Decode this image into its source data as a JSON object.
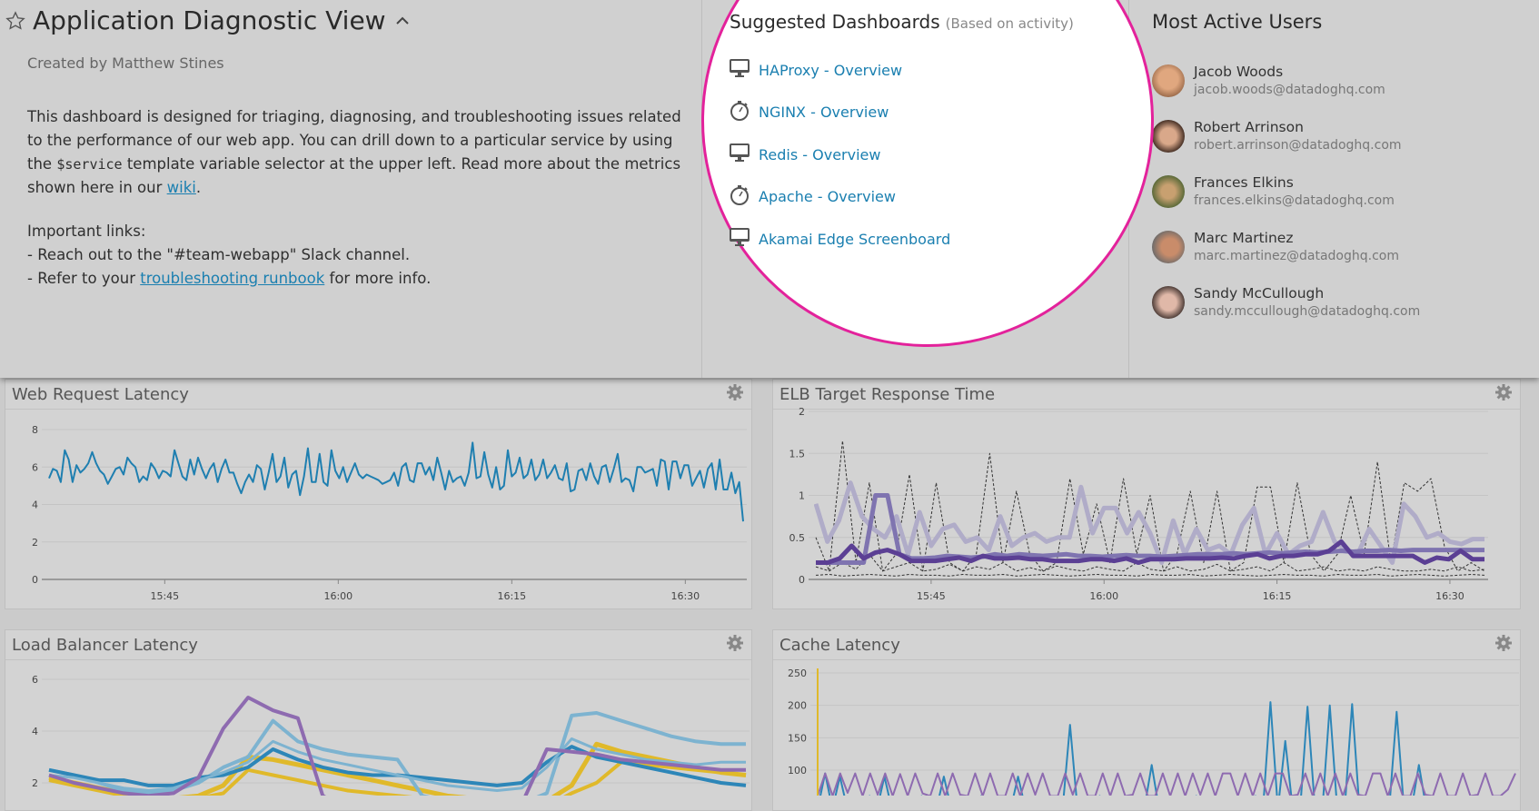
{
  "header": {
    "title": "Application Diagnostic View",
    "creator": "Created by Matthew Stines"
  },
  "description": {
    "p1_before": "This dashboard is designed for triaging, diagnosing, and troubleshooting issues related to the performance of our web app. You can drill down to a particular service by using the ",
    "code": "$service",
    "p1_after": " template variable selector at the upper left. Read more about the metrics shown here in our ",
    "wiki": "wiki",
    "p1_end": ".",
    "links_title": "Important links:",
    "link1": "- Reach out to the \"#team-webapp\" Slack channel.",
    "link2_before": "- Refer to your ",
    "link2_link": "troubleshooting runbook",
    "link2_after": " for more info."
  },
  "suggested": {
    "title": "Suggested Dashboards",
    "subtitle": "(Based on activity)",
    "items": [
      {
        "label": "HAProxy - Overview",
        "icon": "monitor-icon"
      },
      {
        "label": "NGINX - Overview",
        "icon": "stopwatch-icon"
      },
      {
        "label": "Redis - Overview",
        "icon": "monitor-icon"
      },
      {
        "label": "Apache - Overview",
        "icon": "stopwatch-icon"
      },
      {
        "label": "Akamai Edge Screenboard",
        "icon": "monitor-icon"
      }
    ]
  },
  "users": {
    "title": "Most Active Users",
    "items": [
      {
        "name": "Jacob Woods",
        "email": "jacob.woods@datadoghq.com"
      },
      {
        "name": "Robert Arrinson",
        "email": "robert.arrinson@datadoghq.com"
      },
      {
        "name": "Frances Elkins",
        "email": "frances.elkins@datadoghq.com"
      },
      {
        "name": "Marc Martinez",
        "email": "marc.martinez@datadoghq.com"
      },
      {
        "name": "Sandy McCullough",
        "email": "sandy.mccullough@datadoghq.com"
      }
    ]
  },
  "colors": {
    "highlight": "#e3229b",
    "link": "#1a7fb0"
  },
  "chart_data": [
    {
      "title": "Web Request Latency",
      "type": "line",
      "x_range": [
        "15:35",
        "16:35"
      ],
      "xticks": [
        "15:45",
        "16:00",
        "16:15",
        "16:30"
      ],
      "ylim": [
        0,
        8
      ],
      "yticks": [
        0,
        2,
        4,
        6,
        8
      ],
      "grid": true,
      "series": [
        {
          "color": "#1f7fb0",
          "width": 2,
          "values": [
            5.4,
            5.9,
            5.8,
            5.2,
            6.9,
            6.4,
            5.2,
            6.1,
            5.7,
            5.9,
            6.2,
            6.8,
            6.2,
            5.8,
            5.6,
            5.1,
            5.5,
            5.9,
            6.0,
            5.6,
            6.5,
            6.2,
            6.0,
            5.2,
            5.5,
            5.3,
            6.2,
            5.9,
            5.4,
            5.8,
            5.7,
            5.5,
            6.9,
            6.2,
            5.5,
            5.3,
            6.4,
            5.6,
            6.5,
            5.9,
            5.4,
            5.9,
            6.2,
            5.2,
            5.9,
            6.4,
            5.7,
            5.7,
            5.1,
            4.6,
            5.2,
            5.6,
            5.2,
            6.1,
            5.9,
            4.8,
            5.7,
            6.7,
            5.2,
            5.5,
            6.5,
            4.9,
            5.6,
            5.8,
            4.5,
            5.5,
            7.0,
            5.2,
            5.2,
            6.7,
            5.2,
            5.0,
            6.9,
            5.8,
            5.4,
            6.0,
            5.2,
            5.7,
            6.2,
            5.6,
            5.4,
            5.6,
            5.5,
            5.4,
            5.3,
            5.1,
            5.2,
            5.3,
            5.7,
            5.0,
            6.0,
            6.2,
            5.3,
            5.2,
            6.2,
            6.2,
            5.6,
            6.0,
            5.3,
            6.5,
            5.7,
            4.8,
            5.8,
            5.2,
            5.4,
            5.5,
            5.0,
            5.7,
            7.3,
            5.4,
            5.5,
            6.8,
            5.6,
            4.9,
            6.0,
            4.8,
            5.0,
            6.9,
            5.5,
            5.7,
            6.5,
            5.4,
            5.6,
            6.4,
            5.3,
            5.6,
            6.4,
            5.4,
            5.7,
            6.1,
            5.4,
            5.3,
            6.2,
            4.7,
            4.8,
            5.8,
            5.9,
            5.3,
            6.2,
            5.5,
            5.1,
            6.0,
            6.1,
            5.2,
            5.9,
            6.7,
            5.2,
            5.4,
            5.3,
            4.7,
            6.0,
            6.0,
            5.7,
            5.8,
            5.9,
            5.0,
            6.4,
            6.3,
            4.8,
            6.3,
            6.3,
            5.4,
            6.1,
            6.1,
            5.0,
            5.4,
            5.8,
            4.9,
            5.9,
            6.2,
            4.8,
            6.4,
            4.8,
            4.8,
            5.7,
            4.6,
            5.2,
            3.1
          ]
        }
      ]
    },
    {
      "title": "ELB Target Response Time",
      "type": "line",
      "x_range": [
        "15:35",
        "16:33"
      ],
      "xticks": [
        "15:45",
        "16:00",
        "16:15",
        "16:30"
      ],
      "ylim": [
        0,
        2
      ],
      "yticks": [
        0,
        0.5,
        1,
        1.5,
        2
      ],
      "grid": true,
      "series": [
        {
          "color": "#333333",
          "width": 1,
          "dashed": true,
          "values": [
            0.5,
            0.1,
            1.65,
            0.2,
            1.15,
            0.1,
            0.3,
            1.25,
            0.1,
            1.15,
            0.2,
            0.1,
            0.3,
            1.5,
            0.2,
            1.05,
            0.3,
            0.1,
            0.2,
            1.2,
            0.3,
            0.9,
            0.2,
            1.2,
            0.3,
            1.0,
            0.1,
            0.3,
            1.05,
            0.2,
            1.05,
            0.1,
            0.2,
            1.1,
            1.1,
            0.2,
            1.15,
            0.3,
            0.1,
            0.3,
            1.0,
            0.3,
            1.4,
            0.2,
            1.15,
            1.05,
            1.2,
            0.4,
            0.1,
            0.2,
            0.1
          ]
        },
        {
          "color": "#333333",
          "width": 1,
          "dashed": true,
          "values": [
            0.15,
            0.1,
            0.2,
            0.12,
            0.3,
            0.1,
            0.15,
            0.2,
            0.1,
            0.12,
            0.18,
            0.1,
            0.15,
            0.12,
            0.2,
            0.1,
            0.14,
            0.1,
            0.16,
            0.12,
            0.1,
            0.15,
            0.12,
            0.1,
            0.2,
            0.12,
            0.1,
            0.15,
            0.1,
            0.12,
            0.18,
            0.1,
            0.12,
            0.15,
            0.1,
            0.2,
            0.1,
            0.12,
            0.15,
            0.1,
            0.12,
            0.1,
            0.15,
            0.12,
            0.1,
            0.1,
            0.12,
            0.1,
            0.15,
            0.1,
            0.12
          ]
        },
        {
          "color": "#333333",
          "width": 1,
          "dashed": true,
          "values": [
            0.05,
            0.06,
            0.04,
            0.05,
            0.06,
            0.05,
            0.04,
            0.06,
            0.05,
            0.05,
            0.04,
            0.06,
            0.05,
            0.05,
            0.06,
            0.04,
            0.05,
            0.06,
            0.05,
            0.04,
            0.05,
            0.06,
            0.05,
            0.05,
            0.04,
            0.06,
            0.05,
            0.05,
            0.06,
            0.04,
            0.05,
            0.06,
            0.05,
            0.04,
            0.05,
            0.06,
            0.05,
            0.05,
            0.04,
            0.06,
            0.05,
            0.05,
            0.06,
            0.04,
            0.05,
            0.06,
            0.05,
            0.04,
            0.05,
            0.06,
            0.05
          ]
        },
        {
          "color": "#b0acc8",
          "width": 5,
          "values": [
            0.9,
            0.45,
            0.7,
            1.15,
            0.75,
            0.6,
            0.5,
            0.75,
            0.3,
            0.8,
            0.4,
            0.6,
            0.65,
            0.45,
            0.5,
            0.35,
            0.75,
            0.4,
            0.5,
            0.55,
            0.45,
            0.5,
            0.5,
            1.1,
            0.55,
            0.85,
            0.85,
            0.55,
            0.8,
            0.55,
            0.2,
            0.7,
            0.3,
            0.6,
            0.35,
            0.4,
            0.3,
            0.65,
            0.85,
            0.3,
            0.55,
            0.3,
            0.4,
            0.45,
            0.8,
            0.45,
            0.35,
            0.3,
            0.6,
            0.4,
            0.2,
            0.9,
            0.75,
            0.5,
            0.55,
            0.45,
            0.42,
            0.48,
            0.48
          ]
        },
        {
          "color": "#7f74b0",
          "width": 5,
          "values": [
            0.2,
            0.2,
            0.2,
            0.2,
            0.2,
            1.0,
            1.0,
            0.3,
            0.25,
            0.25,
            0.26,
            0.28,
            0.27,
            0.26,
            0.27,
            0.3,
            0.28,
            0.3,
            0.29,
            0.28,
            0.29,
            0.3,
            0.28,
            0.28,
            0.27,
            0.28,
            0.29,
            0.28,
            0.28,
            0.27,
            0.28,
            0.29,
            0.3,
            0.3,
            0.3,
            0.31,
            0.3,
            0.31,
            0.32,
            0.31,
            0.32,
            0.33,
            0.32,
            0.33,
            0.34,
            0.33,
            0.34,
            0.34,
            0.35,
            0.34,
            0.35,
            0.35,
            0.35,
            0.35,
            0.35,
            0.35,
            0.35
          ]
        },
        {
          "color": "#5b3f94",
          "width": 5,
          "values": [
            0.2,
            0.2,
            0.25,
            0.4,
            0.25,
            0.32,
            0.35,
            0.3,
            0.22,
            0.22,
            0.22,
            0.24,
            0.26,
            0.22,
            0.28,
            0.25,
            0.25,
            0.26,
            0.24,
            0.24,
            0.22,
            0.22,
            0.22,
            0.24,
            0.24,
            0.22,
            0.25,
            0.2,
            0.24,
            0.24,
            0.24,
            0.25,
            0.25,
            0.25,
            0.26,
            0.25,
            0.28,
            0.3,
            0.25,
            0.28,
            0.28,
            0.3,
            0.3,
            0.34,
            0.45,
            0.28,
            0.28,
            0.28,
            0.28,
            0.28,
            0.28,
            0.2,
            0.26,
            0.24,
            0.34,
            0.24,
            0.24
          ]
        }
      ]
    },
    {
      "title": "Load Balancer Latency",
      "type": "line",
      "x_range": [
        "15:35",
        "16:35"
      ],
      "ylim": [
        0,
        6
      ],
      "yticks": [
        2,
        4,
        6
      ],
      "grid": true,
      "series": [
        {
          "color": "#e0b92a",
          "width": 5,
          "values": [
            2.2,
            2.0,
            1.8,
            1.6,
            1.5,
            1.4,
            1.5,
            1.9,
            3.0,
            2.9,
            2.7,
            2.5,
            2.3,
            2.1,
            1.9,
            1.7,
            1.5,
            1.4,
            1.3,
            1.2,
            1.3,
            1.9,
            3.5,
            3.2,
            3.0,
            2.8,
            2.6,
            2.4,
            2.3
          ]
        },
        {
          "color": "#e0b92a",
          "width": 4,
          "values": [
            2.1,
            1.9,
            1.7,
            1.5,
            1.4,
            1.3,
            1.4,
            1.6,
            2.5,
            2.3,
            2.1,
            1.9,
            1.7,
            1.6,
            1.5,
            1.4,
            1.3,
            1.2,
            1.1,
            1.0,
            1.1,
            1.6,
            2.0,
            2.8,
            2.7,
            2.6,
            2.5,
            2.4,
            2.3
          ]
        },
        {
          "color": "#7db3d0",
          "width": 4,
          "values": [
            2.5,
            2.3,
            2.0,
            1.7,
            1.6,
            1.7,
            2.0,
            2.6,
            3.0,
            4.4,
            3.6,
            3.3,
            3.1,
            3.0,
            2.9,
            1.5,
            1.3,
            1.2,
            1.1,
            1.2,
            1.6,
            4.6,
            4.7,
            4.4,
            4.1,
            3.8,
            3.6,
            3.5,
            3.5
          ]
        },
        {
          "color": "#2d86b8",
          "width": 4,
          "values": [
            2.5,
            2.3,
            2.1,
            2.1,
            1.9,
            1.9,
            2.2,
            2.3,
            2.6,
            3.3,
            2.9,
            2.6,
            2.4,
            2.3,
            2.3,
            2.2,
            2.1,
            2.0,
            1.9,
            2.0,
            2.8,
            3.4,
            3.0,
            2.8,
            2.6,
            2.4,
            2.2,
            2.0,
            1.9
          ]
        },
        {
          "color": "#7db3d0",
          "width": 3,
          "values": [
            2.3,
            2.2,
            2.0,
            1.8,
            1.7,
            1.8,
            2.1,
            2.4,
            2.8,
            3.6,
            3.2,
            2.9,
            2.7,
            2.5,
            2.3,
            2.1,
            1.9,
            1.8,
            1.7,
            1.8,
            2.6,
            3.7,
            3.3,
            3.1,
            2.9,
            2.8,
            2.7,
            2.8,
            2.8
          ]
        },
        {
          "color": "#8e6bb0",
          "width": 4,
          "values": [
            2.3,
            2.0,
            1.8,
            1.6,
            1.5,
            1.6,
            2.2,
            4.1,
            5.3,
            4.8,
            4.5,
            1.5,
            1.0,
            0.9,
            0.8,
            0.8,
            0.7,
            0.7,
            0.8,
            1.2,
            3.3,
            3.2,
            3.1,
            2.9,
            2.8,
            2.7,
            2.6,
            2.5,
            2.5
          ]
        }
      ]
    },
    {
      "title": "Cache Latency",
      "type": "line",
      "x_range": [
        "15:35",
        "16:35"
      ],
      "ylim": [
        0,
        250
      ],
      "yticks": [
        100,
        150,
        200,
        250
      ],
      "grid": true,
      "series": [
        {
          "color": "#2d86b8",
          "width": 2,
          "values": [
            40,
            95,
            40,
            90,
            40,
            45,
            40,
            60,
            40,
            90,
            40,
            40,
            45,
            40,
            60,
            40,
            40,
            90,
            40,
            45,
            40,
            40,
            60,
            40,
            40,
            45,
            40,
            90,
            40,
            40,
            40,
            45,
            40,
            40,
            170,
            40,
            45,
            40,
            60,
            40,
            40,
            40,
            45,
            40,
            40,
            108,
            40,
            40,
            45,
            40,
            40,
            60,
            40,
            40,
            40,
            45,
            40,
            40,
            40,
            60,
            40,
            205,
            40,
            145,
            40,
            40,
            198,
            40,
            40,
            200,
            40,
            40,
            202,
            40,
            40,
            45,
            40,
            40,
            190,
            40,
            40,
            108,
            40,
            40,
            45,
            40,
            40,
            40,
            60,
            40,
            40,
            45,
            40,
            40,
            40
          ]
        },
        {
          "color": "#8e6bb0",
          "width": 2,
          "values": [
            60,
            95,
            60,
            95,
            65,
            95,
            60,
            95,
            62,
            95,
            60,
            94,
            60,
            95,
            64,
            60,
            95,
            60,
            95,
            62,
            60,
            95,
            60,
            95,
            60,
            60,
            95,
            60,
            95,
            62,
            95,
            60,
            60,
            95,
            62,
            95,
            60,
            60,
            95,
            60,
            95,
            60,
            62,
            95,
            60,
            60,
            95,
            60,
            95,
            60,
            95,
            62,
            95,
            60,
            95,
            95,
            60,
            95,
            60,
            95,
            60,
            95,
            95,
            60,
            62,
            95,
            60,
            95,
            60,
            95,
            60,
            95,
            62,
            60,
            95,
            95,
            60,
            95,
            60,
            60,
            95,
            62,
            60,
            95,
            60,
            60,
            95,
            60,
            62,
            95,
            60,
            60,
            70,
            95
          ]
        },
        {
          "color": "#e0b92a",
          "width": 2,
          "values": [
            260
          ]
        }
      ]
    }
  ]
}
